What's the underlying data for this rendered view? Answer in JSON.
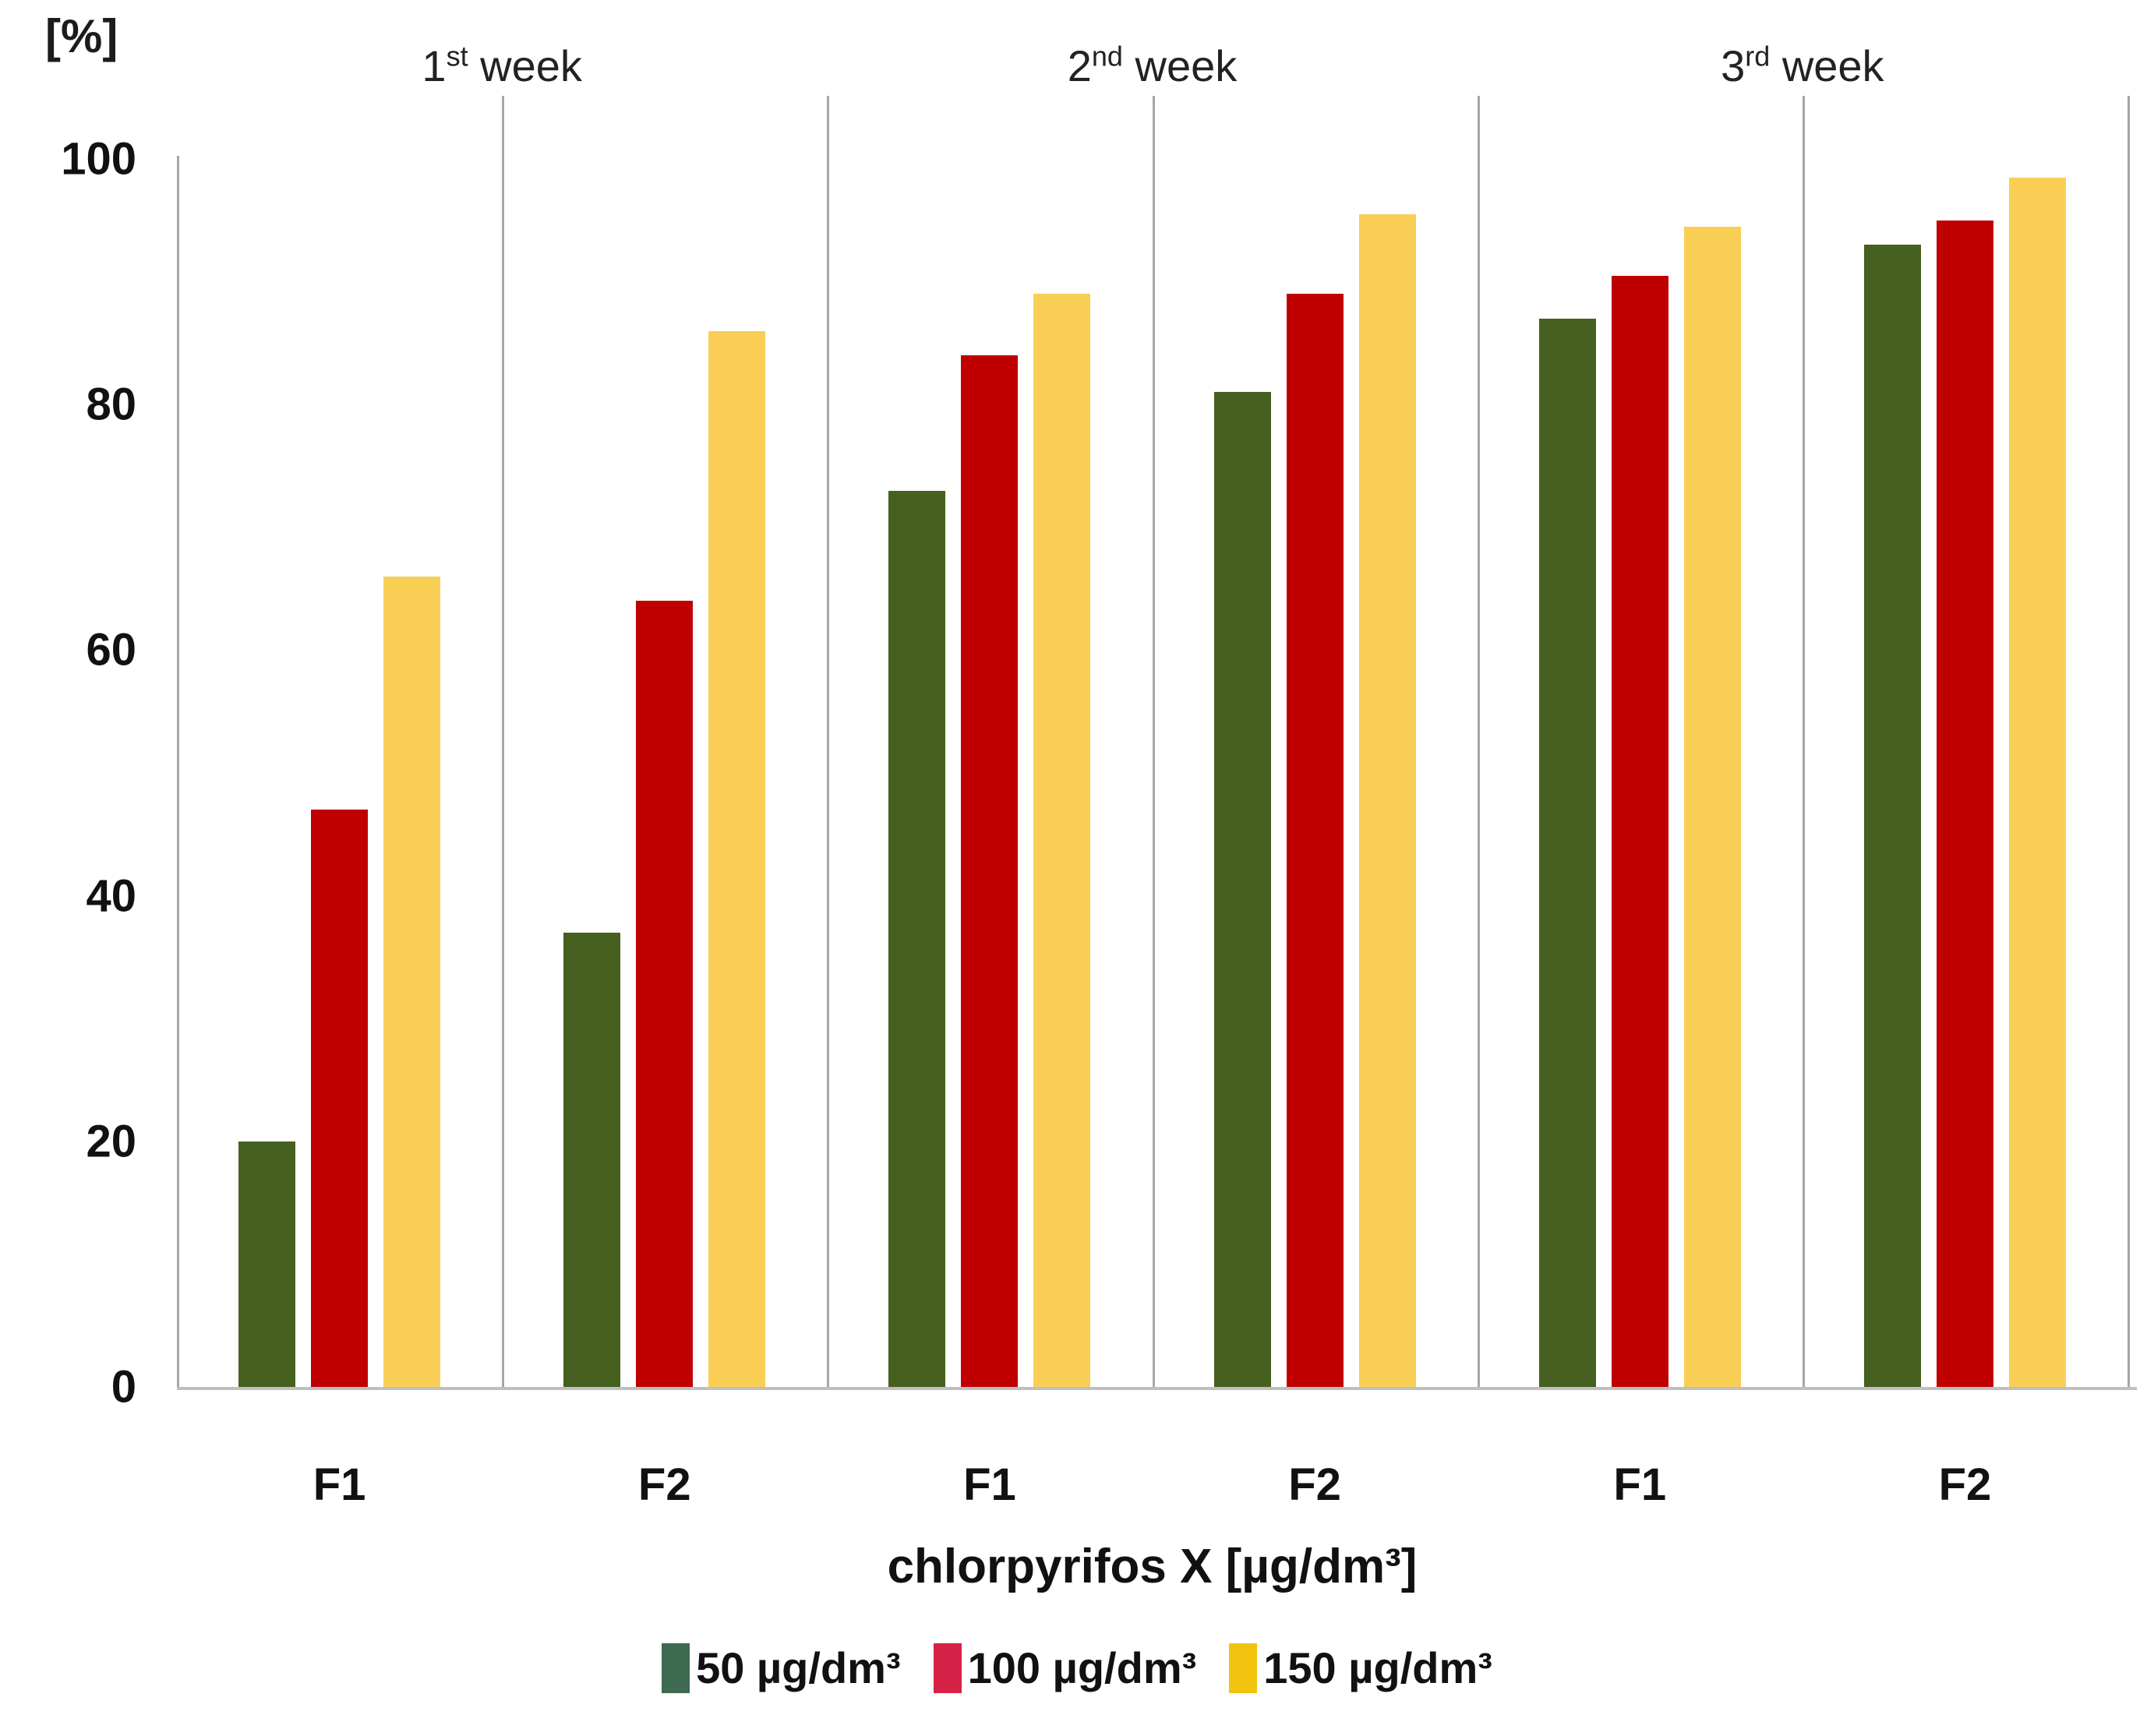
{
  "chart_data": {
    "type": "bar",
    "y_unit": "[%]",
    "ylim": [
      0,
      100
    ],
    "y_ticks": [
      100,
      80,
      60,
      40,
      20,
      0
    ],
    "grid": "vertical category separators only",
    "legend_position": "bottom",
    "weeks": [
      {
        "num": "1",
        "ordinal": "st",
        "word": " week"
      },
      {
        "num": "2",
        "ordinal": "nd",
        "word": " week"
      },
      {
        "num": "3",
        "ordinal": "rd",
        "word": " week"
      }
    ],
    "categories": [
      "F1",
      "F2",
      "F1",
      "F2",
      "F1",
      "F2"
    ],
    "xlabel": "chlorpyrifos X [µg/dm³]",
    "series": [
      {
        "name": "50 µg/dm³",
        "color": "#45601F",
        "legend_swatch_color": "#3D6A50",
        "values": [
          20,
          37,
          73,
          81,
          87,
          93
        ]
      },
      {
        "name": "100 µg/dm³",
        "color": "#C00000",
        "legend_swatch_color": "#D62246",
        "values": [
          47,
          64,
          84,
          89,
          90.5,
          95
        ]
      },
      {
        "name": "150 µg/dm³",
        "color": "#F9CE55",
        "legend_swatch_color": "#F2C410",
        "values": [
          66,
          86,
          89,
          95.5,
          94.5,
          98.5
        ]
      }
    ]
  }
}
